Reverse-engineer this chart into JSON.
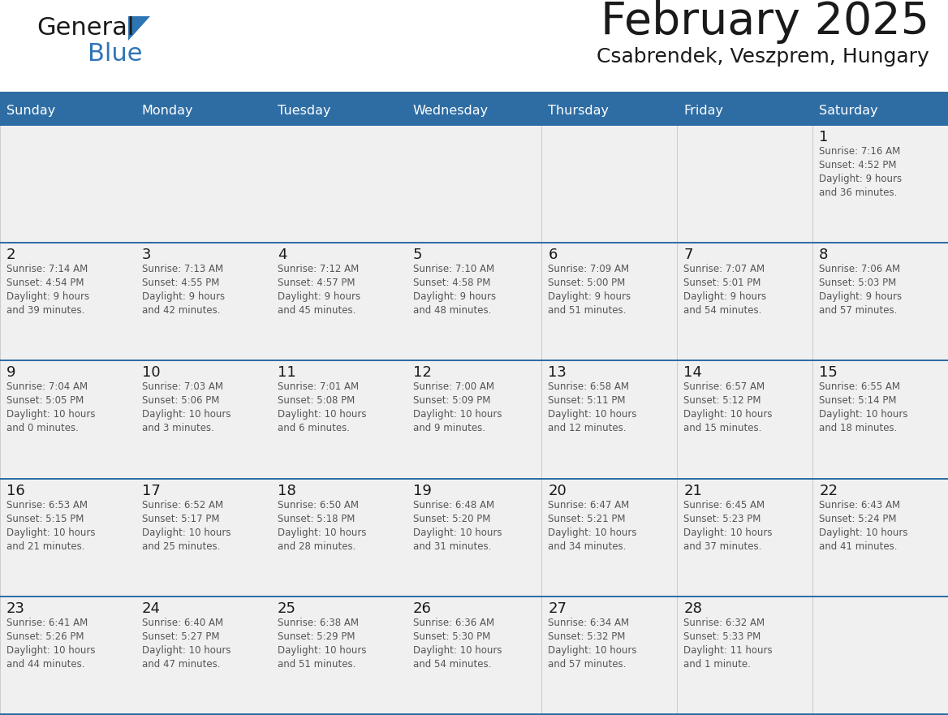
{
  "title": "February 2025",
  "subtitle": "Csabrendek, Veszprem, Hungary",
  "header_bg": "#2E6DA4",
  "header_text_color": "#FFFFFF",
  "cell_bg": "#F0F0F0",
  "border_color": "#2E6DA4",
  "day_names": [
    "Sunday",
    "Monday",
    "Tuesday",
    "Wednesday",
    "Thursday",
    "Friday",
    "Saturday"
  ],
  "title_color": "#1A1A1A",
  "subtitle_color": "#1A1A1A",
  "date_color": "#1A1A1A",
  "info_color": "#555555",
  "logo_text_color": "#1A1A1A",
  "logo_blue_color": "#2E75B6",
  "triangle_color": "#2E75B6",
  "days": [
    {
      "date": 1,
      "col": 6,
      "row": 0,
      "sunrise": "7:16 AM",
      "sunset": "4:52 PM",
      "daylight": "9 hours and 36 minutes."
    },
    {
      "date": 2,
      "col": 0,
      "row": 1,
      "sunrise": "7:14 AM",
      "sunset": "4:54 PM",
      "daylight": "9 hours and 39 minutes."
    },
    {
      "date": 3,
      "col": 1,
      "row": 1,
      "sunrise": "7:13 AM",
      "sunset": "4:55 PM",
      "daylight": "9 hours and 42 minutes."
    },
    {
      "date": 4,
      "col": 2,
      "row": 1,
      "sunrise": "7:12 AM",
      "sunset": "4:57 PM",
      "daylight": "9 hours and 45 minutes."
    },
    {
      "date": 5,
      "col": 3,
      "row": 1,
      "sunrise": "7:10 AM",
      "sunset": "4:58 PM",
      "daylight": "9 hours and 48 minutes."
    },
    {
      "date": 6,
      "col": 4,
      "row": 1,
      "sunrise": "7:09 AM",
      "sunset": "5:00 PM",
      "daylight": "9 hours and 51 minutes."
    },
    {
      "date": 7,
      "col": 5,
      "row": 1,
      "sunrise": "7:07 AM",
      "sunset": "5:01 PM",
      "daylight": "9 hours and 54 minutes."
    },
    {
      "date": 8,
      "col": 6,
      "row": 1,
      "sunrise": "7:06 AM",
      "sunset": "5:03 PM",
      "daylight": "9 hours and 57 minutes."
    },
    {
      "date": 9,
      "col": 0,
      "row": 2,
      "sunrise": "7:04 AM",
      "sunset": "5:05 PM",
      "daylight": "10 hours and 0 minutes."
    },
    {
      "date": 10,
      "col": 1,
      "row": 2,
      "sunrise": "7:03 AM",
      "sunset": "5:06 PM",
      "daylight": "10 hours and 3 minutes."
    },
    {
      "date": 11,
      "col": 2,
      "row": 2,
      "sunrise": "7:01 AM",
      "sunset": "5:08 PM",
      "daylight": "10 hours and 6 minutes."
    },
    {
      "date": 12,
      "col": 3,
      "row": 2,
      "sunrise": "7:00 AM",
      "sunset": "5:09 PM",
      "daylight": "10 hours and 9 minutes."
    },
    {
      "date": 13,
      "col": 4,
      "row": 2,
      "sunrise": "6:58 AM",
      "sunset": "5:11 PM",
      "daylight": "10 hours and 12 minutes."
    },
    {
      "date": 14,
      "col": 5,
      "row": 2,
      "sunrise": "6:57 AM",
      "sunset": "5:12 PM",
      "daylight": "10 hours and 15 minutes."
    },
    {
      "date": 15,
      "col": 6,
      "row": 2,
      "sunrise": "6:55 AM",
      "sunset": "5:14 PM",
      "daylight": "10 hours and 18 minutes."
    },
    {
      "date": 16,
      "col": 0,
      "row": 3,
      "sunrise": "6:53 AM",
      "sunset": "5:15 PM",
      "daylight": "10 hours and 21 minutes."
    },
    {
      "date": 17,
      "col": 1,
      "row": 3,
      "sunrise": "6:52 AM",
      "sunset": "5:17 PM",
      "daylight": "10 hours and 25 minutes."
    },
    {
      "date": 18,
      "col": 2,
      "row": 3,
      "sunrise": "6:50 AM",
      "sunset": "5:18 PM",
      "daylight": "10 hours and 28 minutes."
    },
    {
      "date": 19,
      "col": 3,
      "row": 3,
      "sunrise": "6:48 AM",
      "sunset": "5:20 PM",
      "daylight": "10 hours and 31 minutes."
    },
    {
      "date": 20,
      "col": 4,
      "row": 3,
      "sunrise": "6:47 AM",
      "sunset": "5:21 PM",
      "daylight": "10 hours and 34 minutes."
    },
    {
      "date": 21,
      "col": 5,
      "row": 3,
      "sunrise": "6:45 AM",
      "sunset": "5:23 PM",
      "daylight": "10 hours and 37 minutes."
    },
    {
      "date": 22,
      "col": 6,
      "row": 3,
      "sunrise": "6:43 AM",
      "sunset": "5:24 PM",
      "daylight": "10 hours and 41 minutes."
    },
    {
      "date": 23,
      "col": 0,
      "row": 4,
      "sunrise": "6:41 AM",
      "sunset": "5:26 PM",
      "daylight": "10 hours and 44 minutes."
    },
    {
      "date": 24,
      "col": 1,
      "row": 4,
      "sunrise": "6:40 AM",
      "sunset": "5:27 PM",
      "daylight": "10 hours and 47 minutes."
    },
    {
      "date": 25,
      "col": 2,
      "row": 4,
      "sunrise": "6:38 AM",
      "sunset": "5:29 PM",
      "daylight": "10 hours and 51 minutes."
    },
    {
      "date": 26,
      "col": 3,
      "row": 4,
      "sunrise": "6:36 AM",
      "sunset": "5:30 PM",
      "daylight": "10 hours and 54 minutes."
    },
    {
      "date": 27,
      "col": 4,
      "row": 4,
      "sunrise": "6:34 AM",
      "sunset": "5:32 PM",
      "daylight": "10 hours and 57 minutes."
    },
    {
      "date": 28,
      "col": 5,
      "row": 4,
      "sunrise": "6:32 AM",
      "sunset": "5:33 PM",
      "daylight": "11 hours and 1 minute."
    }
  ]
}
